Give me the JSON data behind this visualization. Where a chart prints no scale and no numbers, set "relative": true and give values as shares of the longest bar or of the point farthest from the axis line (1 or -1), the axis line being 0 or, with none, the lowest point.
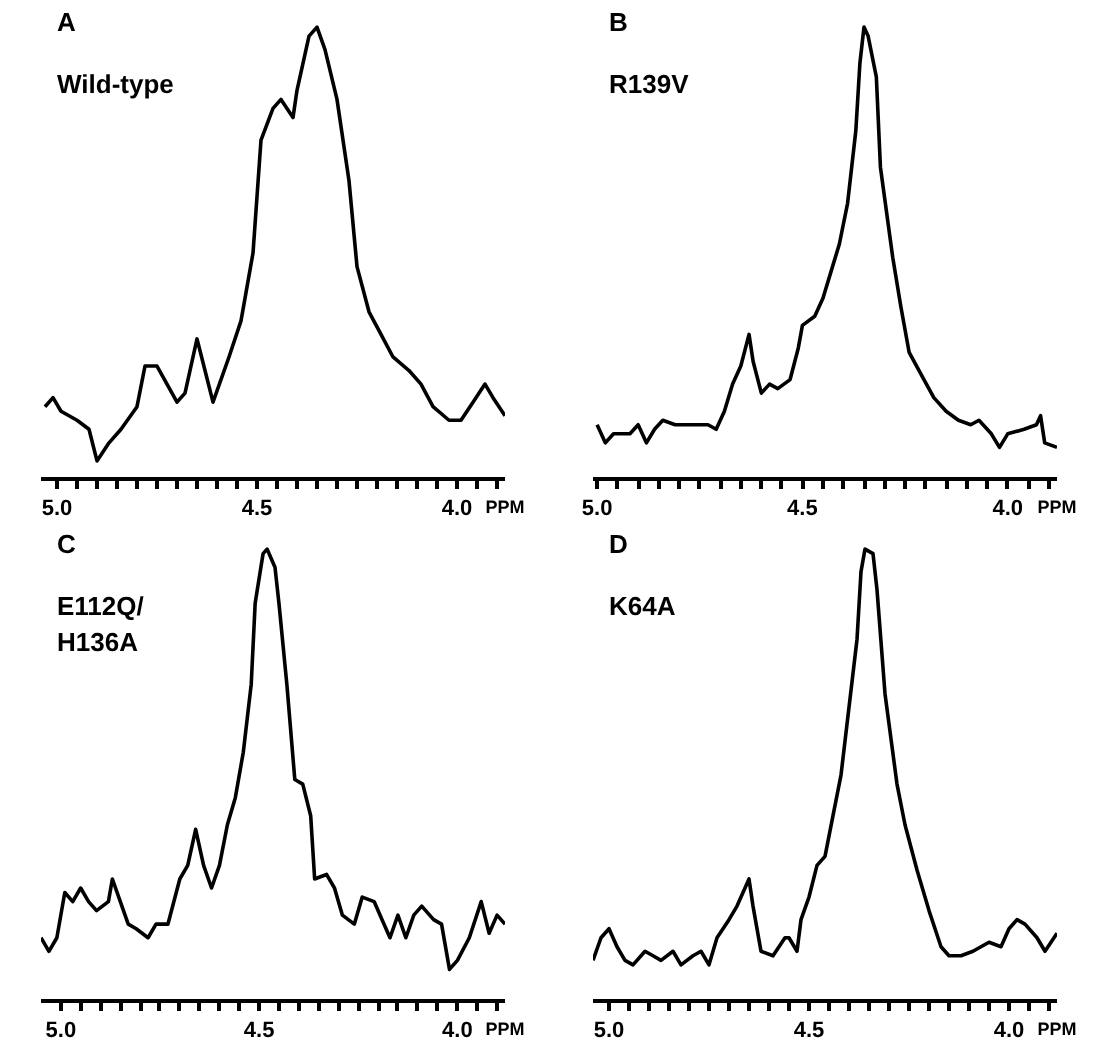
{
  "chart_data": [
    {
      "type": "line",
      "title": "A",
      "subtitle": "Wild-type",
      "xlabel": "PPM",
      "relative": true,
      "grid": false,
      "marker": "none",
      "line_style": "solid",
      "tick_labels": "x",
      "xlim": [
        5.04,
        3.88
      ],
      "xticks": [
        {
          "value": 5.0,
          "label": "5.0"
        },
        {
          "value": 4.95,
          "label": null
        },
        {
          "value": 4.9,
          "label": null
        },
        {
          "value": 4.85,
          "label": null
        },
        {
          "value": 4.8,
          "label": null
        },
        {
          "value": 4.75,
          "label": null
        },
        {
          "value": 4.7,
          "label": null
        },
        {
          "value": 4.65,
          "label": null
        },
        {
          "value": 4.6,
          "label": null
        },
        {
          "value": 4.55,
          "label": null
        },
        {
          "value": 4.5,
          "label": "4.5"
        },
        {
          "value": 4.45,
          "label": null
        },
        {
          "value": 4.4,
          "label": null
        },
        {
          "value": 4.35,
          "label": null
        },
        {
          "value": 4.3,
          "label": null
        },
        {
          "value": 4.25,
          "label": null
        },
        {
          "value": 4.2,
          "label": null
        },
        {
          "value": 4.15,
          "label": null
        },
        {
          "value": 4.1,
          "label": null
        },
        {
          "value": 4.05,
          "label": null
        },
        {
          "value": 4.0,
          "label": "4.0"
        },
        {
          "value": 3.95,
          "label": null
        },
        {
          "value": 3.9,
          "label": null
        }
      ],
      "series": [
        {
          "color": "#000000",
          "x": [
            5.03,
            5.01,
            4.99,
            4.95,
            4.92,
            4.9,
            4.87,
            4.84,
            4.8,
            4.78,
            4.75,
            4.7,
            4.68,
            4.65,
            4.63,
            4.61,
            4.57,
            4.54,
            4.51,
            4.49,
            4.46,
            4.44,
            4.41,
            4.4,
            4.37,
            4.35,
            4.33,
            4.3,
            4.27,
            4.25,
            4.22,
            4.19,
            4.16,
            4.12,
            4.09,
            4.06,
            4.02,
            3.99,
            3.96,
            3.93,
            3.91,
            3.88
          ],
          "values": [
            0.16,
            0.18,
            0.15,
            0.13,
            0.11,
            0.04,
            0.08,
            0.11,
            0.16,
            0.25,
            0.25,
            0.17,
            0.19,
            0.31,
            0.24,
            0.17,
            0.27,
            0.35,
            0.5,
            0.75,
            0.82,
            0.84,
            0.8,
            0.86,
            0.98,
            1.0,
            0.95,
            0.84,
            0.66,
            0.47,
            0.37,
            0.32,
            0.27,
            0.24,
            0.21,
            0.16,
            0.13,
            0.13,
            0.17,
            0.21,
            0.18,
            0.14
          ]
        }
      ]
    },
    {
      "type": "line",
      "title": "B",
      "subtitle": "R139V",
      "xlabel": "PPM",
      "relative": true,
      "grid": false,
      "marker": "none",
      "line_style": "solid",
      "tick_labels": "x",
      "xlim": [
        5.01,
        3.88
      ],
      "xticks": [
        {
          "value": 5.0,
          "label": "5.0"
        },
        {
          "value": 4.95,
          "label": null
        },
        {
          "value": 4.9,
          "label": null
        },
        {
          "value": 4.85,
          "label": null
        },
        {
          "value": 4.8,
          "label": null
        },
        {
          "value": 4.75,
          "label": null
        },
        {
          "value": 4.7,
          "label": null
        },
        {
          "value": 4.65,
          "label": null
        },
        {
          "value": 4.6,
          "label": null
        },
        {
          "value": 4.55,
          "label": null
        },
        {
          "value": 4.5,
          "label": "4.5"
        },
        {
          "value": 4.45,
          "label": null
        },
        {
          "value": 4.4,
          "label": null
        },
        {
          "value": 4.35,
          "label": null
        },
        {
          "value": 4.3,
          "label": null
        },
        {
          "value": 4.25,
          "label": null
        },
        {
          "value": 4.2,
          "label": null
        },
        {
          "value": 4.15,
          "label": null
        },
        {
          "value": 4.1,
          "label": null
        },
        {
          "value": 4.05,
          "label": null
        },
        {
          "value": 4.0,
          "label": "4.0"
        },
        {
          "value": 3.95,
          "label": null
        },
        {
          "value": 3.9,
          "label": null
        }
      ],
      "series": [
        {
          "color": "#000000",
          "x": [
            5.0,
            4.98,
            4.96,
            4.92,
            4.9,
            4.88,
            4.86,
            4.84,
            4.81,
            4.76,
            4.73,
            4.71,
            4.69,
            4.67,
            4.65,
            4.63,
            4.62,
            4.6,
            4.58,
            4.56,
            4.53,
            4.51,
            4.5,
            4.47,
            4.45,
            4.43,
            4.41,
            4.39,
            4.37,
            4.36,
            4.35,
            4.34,
            4.32,
            4.31,
            4.28,
            4.26,
            4.24,
            4.21,
            4.18,
            4.15,
            4.12,
            4.09,
            4.07,
            4.04,
            4.02,
            4.0,
            3.96,
            3.93,
            3.92,
            3.91,
            3.88
          ],
          "values": [
            0.12,
            0.08,
            0.1,
            0.1,
            0.12,
            0.08,
            0.11,
            0.13,
            0.12,
            0.12,
            0.12,
            0.11,
            0.15,
            0.21,
            0.25,
            0.32,
            0.26,
            0.19,
            0.21,
            0.2,
            0.22,
            0.29,
            0.34,
            0.36,
            0.4,
            0.46,
            0.52,
            0.61,
            0.77,
            0.92,
            1.0,
            0.98,
            0.89,
            0.69,
            0.49,
            0.38,
            0.28,
            0.23,
            0.18,
            0.15,
            0.13,
            0.12,
            0.13,
            0.1,
            0.07,
            0.1,
            0.11,
            0.12,
            0.14,
            0.08,
            0.07
          ]
        }
      ]
    },
    {
      "type": "line",
      "title": "C",
      "subtitle": "E112Q/\nH136A",
      "xlabel": "PPM",
      "relative": true,
      "grid": false,
      "marker": "none",
      "line_style": "solid",
      "tick_labels": "x",
      "xlim": [
        5.05,
        3.88
      ],
      "xticks": [
        {
          "value": 5.0,
          "label": "5.0"
        },
        {
          "value": 4.95,
          "label": null
        },
        {
          "value": 4.9,
          "label": null
        },
        {
          "value": 4.85,
          "label": null
        },
        {
          "value": 4.8,
          "label": null
        },
        {
          "value": 4.75,
          "label": null
        },
        {
          "value": 4.7,
          "label": null
        },
        {
          "value": 4.65,
          "label": null
        },
        {
          "value": 4.6,
          "label": null
        },
        {
          "value": 4.55,
          "label": null
        },
        {
          "value": 4.5,
          "label": "4.5"
        },
        {
          "value": 4.45,
          "label": null
        },
        {
          "value": 4.4,
          "label": null
        },
        {
          "value": 4.35,
          "label": null
        },
        {
          "value": 4.3,
          "label": null
        },
        {
          "value": 4.25,
          "label": null
        },
        {
          "value": 4.2,
          "label": null
        },
        {
          "value": 4.15,
          "label": null
        },
        {
          "value": 4.1,
          "label": null
        },
        {
          "value": 4.05,
          "label": null
        },
        {
          "value": 4.0,
          "label": "4.0"
        },
        {
          "value": 3.95,
          "label": null
        },
        {
          "value": 3.9,
          "label": null
        }
      ],
      "series": [
        {
          "color": "#000000",
          "x": [
            5.05,
            5.03,
            5.01,
            4.99,
            4.97,
            4.95,
            4.93,
            4.91,
            4.88,
            4.87,
            4.85,
            4.83,
            4.81,
            4.78,
            4.76,
            4.73,
            4.7,
            4.68,
            4.66,
            4.64,
            4.62,
            4.6,
            4.58,
            4.56,
            4.54,
            4.52,
            4.51,
            4.49,
            4.48,
            4.46,
            4.45,
            4.43,
            4.41,
            4.39,
            4.37,
            4.36,
            4.33,
            4.31,
            4.29,
            4.26,
            4.24,
            4.21,
            4.19,
            4.17,
            4.15,
            4.13,
            4.11,
            4.09,
            4.06,
            4.04,
            4.02,
            4.0,
            3.97,
            3.94,
            3.92,
            3.9,
            3.88
          ],
          "values": [
            0.14,
            0.11,
            0.14,
            0.24,
            0.22,
            0.25,
            0.22,
            0.2,
            0.22,
            0.27,
            0.22,
            0.17,
            0.16,
            0.14,
            0.17,
            0.17,
            0.27,
            0.3,
            0.38,
            0.3,
            0.25,
            0.3,
            0.39,
            0.45,
            0.55,
            0.7,
            0.88,
            0.99,
            1.0,
            0.96,
            0.88,
            0.7,
            0.49,
            0.48,
            0.41,
            0.27,
            0.28,
            0.25,
            0.19,
            0.17,
            0.23,
            0.22,
            0.18,
            0.14,
            0.19,
            0.14,
            0.19,
            0.21,
            0.18,
            0.17,
            0.07,
            0.09,
            0.14,
            0.22,
            0.15,
            0.19,
            0.17
          ]
        }
      ]
    },
    {
      "type": "line",
      "title": "D",
      "subtitle": "K64A",
      "xlabel": "PPM",
      "relative": true,
      "grid": false,
      "marker": "none",
      "line_style": "solid",
      "tick_labels": "x",
      "xlim": [
        5.04,
        3.88
      ],
      "xticks": [
        {
          "value": 5.0,
          "label": "5.0"
        },
        {
          "value": 4.95,
          "label": null
        },
        {
          "value": 4.9,
          "label": null
        },
        {
          "value": 4.85,
          "label": null
        },
        {
          "value": 4.8,
          "label": null
        },
        {
          "value": 4.75,
          "label": null
        },
        {
          "value": 4.7,
          "label": null
        },
        {
          "value": 4.65,
          "label": null
        },
        {
          "value": 4.6,
          "label": null
        },
        {
          "value": 4.55,
          "label": null
        },
        {
          "value": 4.5,
          "label": "4.5"
        },
        {
          "value": 4.45,
          "label": null
        },
        {
          "value": 4.4,
          "label": null
        },
        {
          "value": 4.35,
          "label": null
        },
        {
          "value": 4.3,
          "label": null
        },
        {
          "value": 4.25,
          "label": null
        },
        {
          "value": 4.2,
          "label": null
        },
        {
          "value": 4.15,
          "label": null
        },
        {
          "value": 4.1,
          "label": null
        },
        {
          "value": 4.05,
          "label": null
        },
        {
          "value": 4.0,
          "label": "4.0"
        },
        {
          "value": 3.95,
          "label": null
        },
        {
          "value": 3.9,
          "label": null
        }
      ],
      "series": [
        {
          "color": "#000000",
          "x": [
            5.04,
            5.02,
            5.0,
            4.98,
            4.96,
            4.94,
            4.91,
            4.89,
            4.87,
            4.84,
            4.82,
            4.79,
            4.77,
            4.75,
            4.73,
            4.7,
            4.68,
            4.65,
            4.64,
            4.62,
            4.59,
            4.56,
            4.55,
            4.53,
            4.52,
            4.5,
            4.48,
            4.46,
            4.44,
            4.42,
            4.4,
            4.38,
            4.37,
            4.36,
            4.34,
            4.33,
            4.31,
            4.28,
            4.26,
            4.23,
            4.2,
            4.17,
            4.15,
            4.12,
            4.09,
            4.07,
            4.05,
            4.02,
            4.0,
            3.98,
            3.96,
            3.93,
            3.91,
            3.88
          ],
          "values": [
            0.09,
            0.14,
            0.16,
            0.12,
            0.09,
            0.08,
            0.11,
            0.1,
            0.09,
            0.11,
            0.08,
            0.1,
            0.11,
            0.08,
            0.14,
            0.18,
            0.21,
            0.27,
            0.21,
            0.11,
            0.1,
            0.14,
            0.14,
            0.11,
            0.18,
            0.23,
            0.3,
            0.32,
            0.41,
            0.5,
            0.65,
            0.8,
            0.95,
            1.0,
            0.99,
            0.91,
            0.68,
            0.48,
            0.39,
            0.29,
            0.2,
            0.12,
            0.1,
            0.1,
            0.11,
            0.12,
            0.13,
            0.12,
            0.16,
            0.18,
            0.17,
            0.14,
            0.11,
            0.15
          ]
        }
      ]
    }
  ]
}
